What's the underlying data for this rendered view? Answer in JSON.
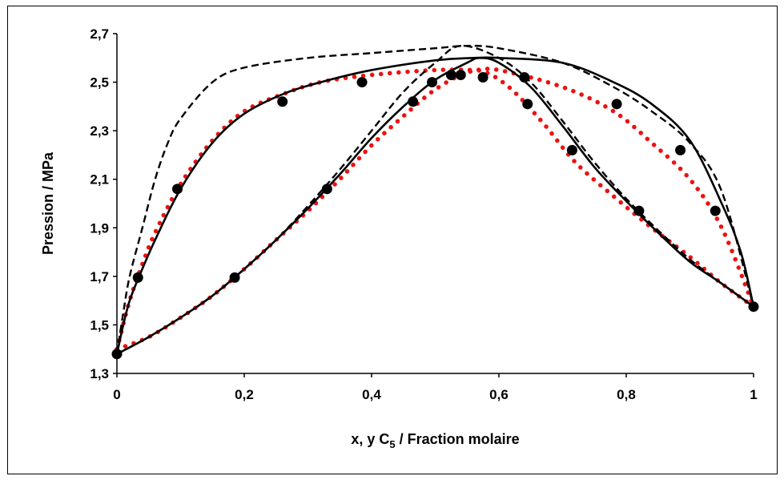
{
  "chart_data": {
    "type": "scatter",
    "title": "",
    "xlabel": {
      "main": "x, y C",
      "sub": "5",
      "rest": " / Fraction molaire"
    },
    "ylabel": "Pression / MPa",
    "xlim": [
      0,
      1
    ],
    "ylim": [
      1.3,
      2.7
    ],
    "x_ticks": [
      {
        "value": 0,
        "label": "0"
      },
      {
        "value": 0.2,
        "label": "0,2"
      },
      {
        "value": 0.4,
        "label": "0,4"
      },
      {
        "value": 0.6,
        "label": "0,6"
      },
      {
        "value": 0.8,
        "label": "0,8"
      },
      {
        "value": 1,
        "label": "1"
      }
    ],
    "y_ticks": [
      {
        "value": 1.3,
        "label": "1,3"
      },
      {
        "value": 1.5,
        "label": "1,5"
      },
      {
        "value": 1.7,
        "label": "1,7"
      },
      {
        "value": 1.9,
        "label": "1,9"
      },
      {
        "value": 2.1,
        "label": "2,1"
      },
      {
        "value": 2.3,
        "label": "2,3"
      },
      {
        "value": 2.5,
        "label": "2,5"
      },
      {
        "value": 2.7,
        "label": "2,7"
      }
    ],
    "grid": false,
    "colors": {
      "solid": "#000000",
      "dashed": "#000000",
      "dotted": "#ee1111",
      "points": "#000000"
    },
    "series": [
      {
        "style": "points",
        "points": [
          [
            0,
            1.38
          ],
          [
            0.033,
            1.695
          ],
          [
            0.095,
            2.06
          ],
          [
            0.26,
            2.42
          ],
          [
            0.385,
            2.5
          ],
          [
            0.495,
            2.5
          ],
          [
            0.525,
            2.53
          ],
          [
            0.54,
            2.53
          ],
          [
            0.575,
            2.52
          ],
          [
            0.64,
            2.52
          ],
          [
            0.785,
            2.41
          ],
          [
            0.885,
            2.22
          ],
          [
            0.94,
            1.97
          ],
          [
            1,
            1.575
          ],
          [
            0.185,
            1.695
          ],
          [
            0.33,
            2.06
          ],
          [
            0.465,
            2.42
          ],
          [
            0.645,
            2.41
          ],
          [
            0.715,
            2.22
          ],
          [
            0.82,
            1.97
          ]
        ]
      },
      {
        "style": "solid",
        "curves": [
          [
            [
              0,
              1.38
            ],
            [
              0.01,
              1.5
            ],
            [
              0.02,
              1.6
            ],
            [
              0.035,
              1.7
            ],
            [
              0.06,
              1.85
            ],
            [
              0.1,
              2.06
            ],
            [
              0.15,
              2.25
            ],
            [
              0.2,
              2.37
            ],
            [
              0.26,
              2.45
            ],
            [
              0.32,
              2.5
            ],
            [
              0.4,
              2.55
            ],
            [
              0.5,
              2.59
            ],
            [
              0.56,
              2.6
            ],
            [
              0.6,
              2.6
            ],
            [
              0.7,
              2.58
            ],
            [
              0.78,
              2.5
            ],
            [
              0.84,
              2.41
            ],
            [
              0.9,
              2.26
            ],
            [
              0.95,
              2.0
            ],
            [
              0.98,
              1.8
            ],
            [
              1,
              1.575
            ]
          ],
          [
            [
              0,
              1.38
            ],
            [
              0.05,
              1.45
            ],
            [
              0.1,
              1.53
            ],
            [
              0.15,
              1.62
            ],
            [
              0.2,
              1.73
            ],
            [
              0.25,
              1.85
            ],
            [
              0.3,
              1.98
            ],
            [
              0.35,
              2.12
            ],
            [
              0.4,
              2.27
            ],
            [
              0.45,
              2.4
            ],
            [
              0.5,
              2.51
            ],
            [
              0.55,
              2.58
            ],
            [
              0.57,
              2.6
            ],
            [
              0.6,
              2.58
            ],
            [
              0.65,
              2.48
            ],
            [
              0.7,
              2.32
            ],
            [
              0.75,
              2.15
            ],
            [
              0.8,
              2.01
            ],
            [
              0.85,
              1.88
            ],
            [
              0.9,
              1.76
            ],
            [
              0.95,
              1.67
            ],
            [
              1,
              1.575
            ]
          ]
        ]
      },
      {
        "style": "dashed",
        "curves": [
          [
            [
              0,
              1.38
            ],
            [
              0.01,
              1.55
            ],
            [
              0.02,
              1.7
            ],
            [
              0.04,
              1.9
            ],
            [
              0.06,
              2.1
            ],
            [
              0.08,
              2.25
            ],
            [
              0.1,
              2.35
            ],
            [
              0.15,
              2.5
            ],
            [
              0.2,
              2.56
            ],
            [
              0.3,
              2.6
            ],
            [
              0.4,
              2.62
            ],
            [
              0.5,
              2.64
            ],
            [
              0.55,
              2.65
            ],
            [
              0.6,
              2.64
            ],
            [
              0.7,
              2.58
            ],
            [
              0.78,
              2.48
            ],
            [
              0.84,
              2.38
            ],
            [
              0.9,
              2.25
            ],
            [
              0.95,
              2.05
            ],
            [
              1,
              1.575
            ]
          ],
          [
            [
              0,
              1.38
            ],
            [
              0.05,
              1.45
            ],
            [
              0.1,
              1.53
            ],
            [
              0.15,
              1.62
            ],
            [
              0.2,
              1.73
            ],
            [
              0.25,
              1.85
            ],
            [
              0.3,
              1.99
            ],
            [
              0.35,
              2.14
            ],
            [
              0.4,
              2.3
            ],
            [
              0.45,
              2.46
            ],
            [
              0.5,
              2.58
            ],
            [
              0.54,
              2.65
            ],
            [
              0.6,
              2.6
            ],
            [
              0.65,
              2.5
            ],
            [
              0.7,
              2.34
            ],
            [
              0.75,
              2.17
            ],
            [
              0.8,
              2.02
            ],
            [
              0.85,
              1.89
            ],
            [
              0.9,
              1.77
            ],
            [
              0.95,
              1.67
            ],
            [
              1,
              1.575
            ]
          ]
        ]
      },
      {
        "style": "dotted",
        "curves": [
          [
            [
              0,
              1.4
            ],
            [
              0.02,
              1.6
            ],
            [
              0.04,
              1.75
            ],
            [
              0.06,
              1.88
            ],
            [
              0.1,
              2.08
            ],
            [
              0.15,
              2.26
            ],
            [
              0.2,
              2.38
            ],
            [
              0.26,
              2.45
            ],
            [
              0.32,
              2.5
            ],
            [
              0.4,
              2.53
            ],
            [
              0.5,
              2.55
            ],
            [
              0.56,
              2.55
            ],
            [
              0.6,
              2.55
            ],
            [
              0.7,
              2.48
            ],
            [
              0.78,
              2.38
            ],
            [
              0.84,
              2.25
            ],
            [
              0.9,
              2.1
            ],
            [
              0.95,
              1.9
            ],
            [
              1,
              1.575
            ]
          ],
          [
            [
              0,
              1.4
            ],
            [
              0.05,
              1.45
            ],
            [
              0.1,
              1.53
            ],
            [
              0.15,
              1.62
            ],
            [
              0.2,
              1.73
            ],
            [
              0.25,
              1.85
            ],
            [
              0.3,
              1.97
            ],
            [
              0.35,
              2.1
            ],
            [
              0.4,
              2.24
            ],
            [
              0.45,
              2.36
            ],
            [
              0.5,
              2.47
            ],
            [
              0.55,
              2.54
            ],
            [
              0.58,
              2.54
            ],
            [
              0.62,
              2.47
            ],
            [
              0.67,
              2.33
            ],
            [
              0.72,
              2.17
            ],
            [
              0.78,
              2.03
            ],
            [
              0.84,
              1.9
            ],
            [
              0.9,
              1.78
            ],
            [
              0.95,
              1.67
            ],
            [
              1,
              1.575
            ]
          ]
        ]
      }
    ]
  }
}
